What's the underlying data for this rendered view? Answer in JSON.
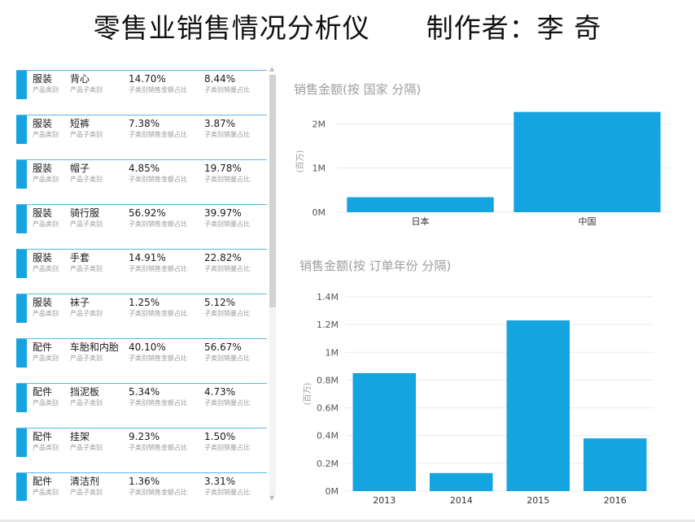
{
  "title": "零售业销售情况分析仪      制作者：李 奇",
  "cards": [
    {
      "category": "服装",
      "subcategory": "背心",
      "amount_share": "14.70%",
      "qty_share": "8.44%"
    },
    {
      "category": "服装",
      "subcategory": "短裤",
      "amount_share": "7.38%",
      "qty_share": "3.87%"
    },
    {
      "category": "服装",
      "subcategory": "帽子",
      "amount_share": "4.85%",
      "qty_share": "19.78%"
    },
    {
      "category": "服装",
      "subcategory": "骑行服",
      "amount_share": "56.92%",
      "qty_share": "39.97%"
    },
    {
      "category": "服装",
      "subcategory": "手套",
      "amount_share": "14.91%",
      "qty_share": "22.82%"
    },
    {
      "category": "服装",
      "subcategory": "袜子",
      "amount_share": "1.25%",
      "qty_share": "5.12%"
    },
    {
      "category": "配件",
      "subcategory": "车胎和内胎",
      "amount_share": "40.10%",
      "qty_share": "56.67%"
    },
    {
      "category": "配件",
      "subcategory": "挡泥板",
      "amount_share": "5.34%",
      "qty_share": "4.73%"
    },
    {
      "category": "配件",
      "subcategory": "挂架",
      "amount_share": "9.23%",
      "qty_share": "1.50%"
    },
    {
      "category": "配件",
      "subcategory": "清洁剂",
      "amount_share": "1.36%",
      "qty_share": "3.31%"
    }
  ],
  "card_labels": {
    "category": "产品类别",
    "subcategory": "产品子类别",
    "amount_share": "子类别销售金额占比",
    "qty_share": "子类别销量占比"
  },
  "colors": {
    "accent": "#14a5e0",
    "grid": "#ececec",
    "axis_text": "#555555",
    "title_text": "#9e9e9e"
  },
  "chart_data": [
    {
      "type": "bar",
      "title": "销售金额(按 国家 分隔)",
      "ylabel": "(百万)",
      "categories": [
        "日本",
        "中国"
      ],
      "values": [
        0.34,
        2.27
      ],
      "yticks": [
        0,
        1,
        2
      ],
      "ytick_labels": [
        "0M",
        "1M",
        "2M"
      ],
      "ylim": [
        0,
        2.3
      ],
      "grid": true
    },
    {
      "type": "bar",
      "title": "销售金额(按 订单年份 分隔)",
      "ylabel": "(百万)",
      "categories": [
        "2013",
        "2014",
        "2015",
        "2016"
      ],
      "values": [
        0.85,
        0.13,
        1.23,
        0.38
      ],
      "yticks": [
        0,
        0.2,
        0.4,
        0.6,
        0.8,
        1.0,
        1.2,
        1.4
      ],
      "ytick_labels": [
        "0M",
        "0.2M",
        "0.4M",
        "0.6M",
        "0.8M",
        "1M",
        "1.2M",
        "1.4M"
      ],
      "ylim": [
        0,
        1.4
      ],
      "grid": true
    }
  ]
}
